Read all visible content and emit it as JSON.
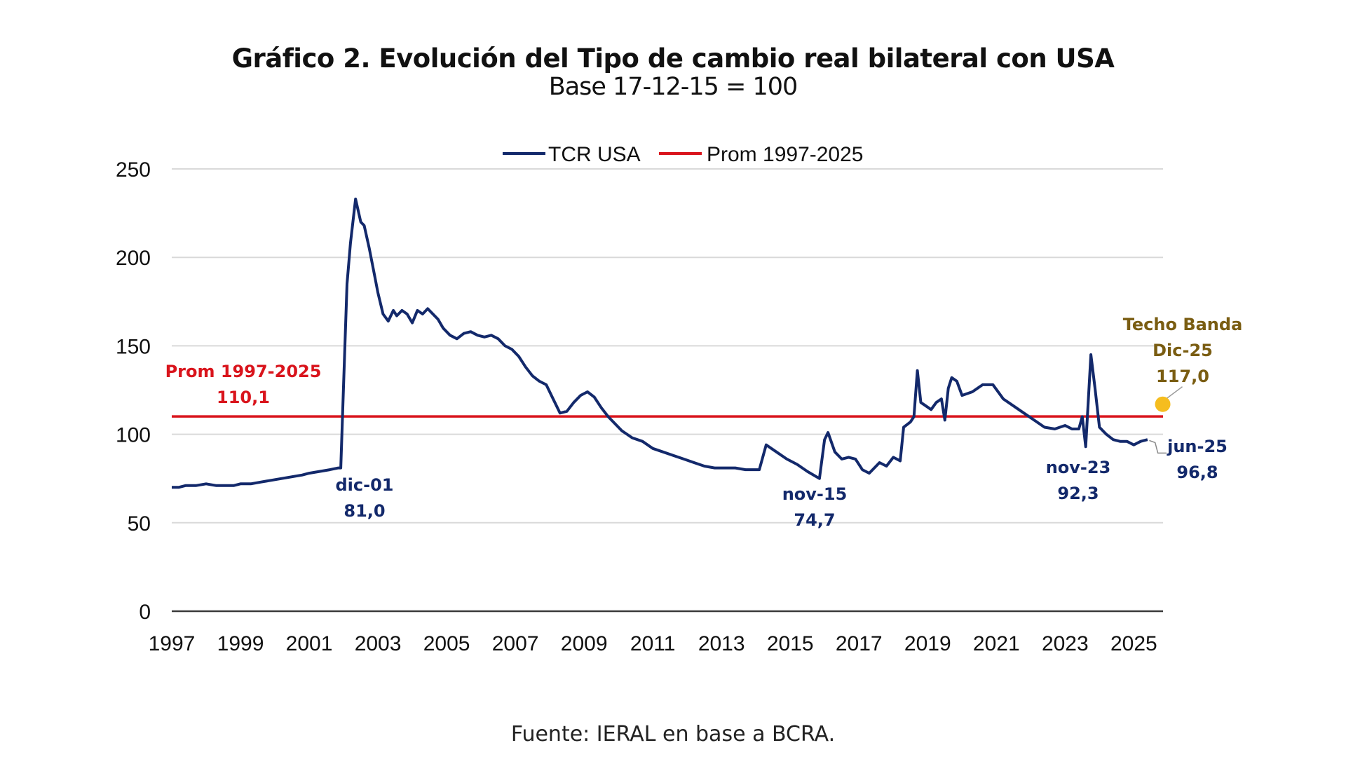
{
  "header": {
    "title": "Gráfico 2. Evolución del Tipo de cambio real bilateral con USA",
    "subtitle": "Base 17-12-15 = 100"
  },
  "footer": {
    "source": "Fuente: IERAL en base a BCRA."
  },
  "colors": {
    "series": "#13296b",
    "average": "#d9141c",
    "highlight_point": "#f5bd1f",
    "highlight_text": "#7a5d12",
    "grid": "#d9d9d9",
    "axis": "#3a3a3a"
  },
  "chart_data": {
    "type": "line",
    "title": "Gráfico 2. Evolución del Tipo de cambio real bilateral con USA",
    "subtitle": "Base 17-12-15 = 100",
    "xlabel": "",
    "ylabel": "",
    "xlim": [
      1997,
      2025.85
    ],
    "ylim": [
      0,
      250
    ],
    "yticks": [
      0,
      50,
      100,
      150,
      200,
      250
    ],
    "xticks": [
      "1997",
      "1999",
      "2001",
      "2003",
      "2005",
      "2007",
      "2009",
      "2011",
      "2013",
      "2015",
      "2017",
      "2019",
      "2021",
      "2023",
      "2025"
    ],
    "grid": true,
    "legend_position": "top-center",
    "legend": [
      "TCR USA",
      "Prom 1997-2025"
    ],
    "series": [
      {
        "name": "TCR USA",
        "x": [
          1997.0,
          1997.2,
          1997.4,
          1997.7,
          1998.0,
          1998.3,
          1998.5,
          1998.8,
          1999.0,
          1999.3,
          1999.6,
          1999.9,
          2000.2,
          2000.5,
          2000.8,
          2001.0,
          2001.3,
          2001.6,
          2001.85,
          2001.92,
          2002.0,
          2002.1,
          2002.2,
          2002.35,
          2002.5,
          2002.6,
          2002.75,
          2002.9,
          2003.0,
          2003.15,
          2003.3,
          2003.45,
          2003.55,
          2003.7,
          2003.85,
          2004.0,
          2004.15,
          2004.3,
          2004.45,
          2004.6,
          2004.75,
          2004.9,
          2005.1,
          2005.3,
          2005.5,
          2005.7,
          2005.9,
          2006.1,
          2006.3,
          2006.5,
          2006.7,
          2006.9,
          2007.1,
          2007.3,
          2007.5,
          2007.7,
          2007.9,
          2008.1,
          2008.3,
          2008.5,
          2008.7,
          2008.9,
          2009.1,
          2009.3,
          2009.5,
          2009.7,
          2009.9,
          2010.1,
          2010.4,
          2010.7,
          2011.0,
          2011.3,
          2011.6,
          2011.9,
          2012.2,
          2012.5,
          2012.8,
          2013.1,
          2013.4,
          2013.7,
          2014.0,
          2014.1,
          2014.3,
          2014.6,
          2014.9,
          2015.2,
          2015.5,
          2015.85,
          2016.0,
          2016.1,
          2016.3,
          2016.5,
          2016.7,
          2016.9,
          2017.1,
          2017.3,
          2017.6,
          2017.8,
          2018.0,
          2018.2,
          2018.3,
          2018.5,
          2018.6,
          2018.7,
          2018.8,
          2018.95,
          2019.1,
          2019.25,
          2019.4,
          2019.5,
          2019.6,
          2019.7,
          2019.85,
          2020.0,
          2020.3,
          2020.6,
          2020.9,
          2021.2,
          2021.5,
          2021.8,
          2022.1,
          2022.4,
          2022.7,
          2023.0,
          2023.2,
          2023.4,
          2023.5,
          2023.6,
          2023.75,
          2023.87,
          2024.0,
          2024.2,
          2024.4,
          2024.6,
          2024.8,
          2025.0,
          2025.2,
          2025.4
        ],
        "values": [
          70,
          70,
          71,
          71,
          72,
          71,
          71,
          71,
          72,
          72,
          73,
          74,
          75,
          76,
          77,
          78,
          79,
          80,
          81,
          81,
          128,
          185,
          208,
          233,
          220,
          218,
          205,
          190,
          180,
          168,
          164,
          170,
          167,
          170,
          168,
          163,
          170,
          168,
          171,
          168,
          165,
          160,
          156,
          154,
          157,
          158,
          156,
          155,
          156,
          154,
          150,
          148,
          144,
          138,
          133,
          130,
          128,
          120,
          112,
          113,
          118,
          122,
          124,
          121,
          115,
          110,
          106,
          102,
          98,
          96,
          92,
          90,
          88,
          86,
          84,
          82,
          81,
          81,
          81,
          80,
          80,
          80,
          94,
          90,
          86,
          83,
          79,
          75,
          97,
          101,
          90,
          86,
          87,
          86,
          80,
          78,
          84,
          82,
          87,
          85,
          104,
          107,
          110,
          136,
          118,
          116,
          114,
          118,
          120,
          108,
          126,
          132,
          130,
          122,
          124,
          128,
          128,
          120,
          116,
          112,
          108,
          104,
          103,
          105,
          103,
          103,
          110,
          93,
          145,
          126,
          104,
          100,
          97,
          96,
          96,
          94,
          96,
          97
        ]
      },
      {
        "name": "Prom 1997-2025",
        "x": [
          1997,
          2025.85
        ],
        "values": [
          110.1,
          110.1
        ]
      }
    ],
    "annotations": [
      {
        "id": "prom",
        "lines": [
          "Prom 1997-2025",
          "110,1"
        ],
        "color": "average"
      },
      {
        "id": "dic01",
        "lines": [
          "dic-01",
          "81,0"
        ],
        "x": 2001.92,
        "value": 81.0,
        "color": "series"
      },
      {
        "id": "nov15",
        "lines": [
          "nov-15",
          "74,7"
        ],
        "x": 2015.85,
        "value": 74.7,
        "color": "series"
      },
      {
        "id": "nov23",
        "lines": [
          "nov-23",
          "92,3"
        ],
        "x": 2023.87,
        "value": 92.3,
        "color": "series"
      },
      {
        "id": "jun25",
        "lines": [
          "jun-25",
          "96,8"
        ],
        "x": 2025.4,
        "value": 96.8,
        "color": "series"
      },
      {
        "id": "techo",
        "lines": [
          "Techo Banda",
          "Dic-25",
          "117,0"
        ],
        "x": 2025.8,
        "value": 117.0,
        "color": "highlight_text"
      }
    ]
  }
}
